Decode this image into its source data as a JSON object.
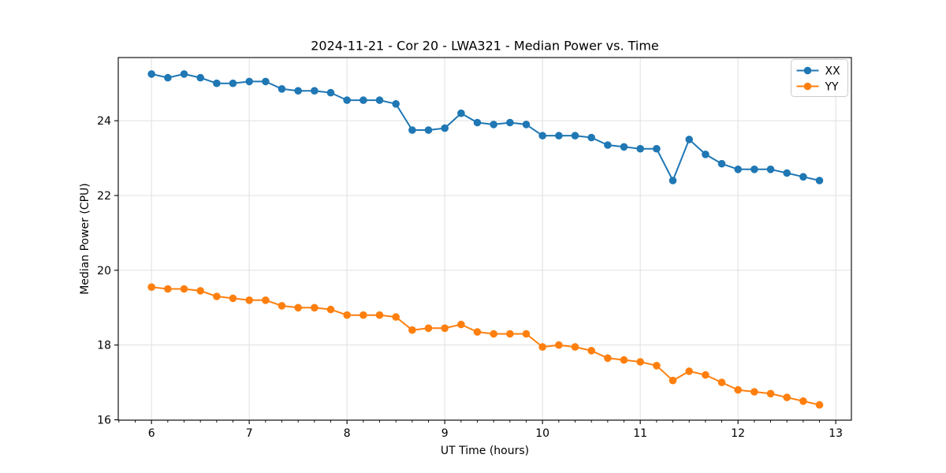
{
  "chart_data": {
    "type": "line",
    "title": "2024-11-21 - Cor 20 - LWA321 - Median Power vs. Time",
    "xlabel": "UT Time (hours)",
    "ylabel": "Median Power (CPU)",
    "xlim": [
      5.66,
      13.16
    ],
    "ylim": [
      15.99,
      25.69
    ],
    "xticks": [
      6,
      7,
      8,
      9,
      10,
      11,
      12,
      13
    ],
    "yticks": [
      16,
      18,
      20,
      22,
      24
    ],
    "x_minor_interval": 0.16667,
    "grid": true,
    "grid_color": "#e0e0e0",
    "spine_color": "#000000",
    "background_color": "#ffffff",
    "legend_position": "upper right",
    "x": [
      6.0,
      6.167,
      6.333,
      6.5,
      6.667,
      6.833,
      7.0,
      7.167,
      7.333,
      7.5,
      7.667,
      7.833,
      8.0,
      8.167,
      8.333,
      8.5,
      8.667,
      8.833,
      9.0,
      9.167,
      9.333,
      9.5,
      9.667,
      9.833,
      10.0,
      10.167,
      10.333,
      10.5,
      10.667,
      10.833,
      11.0,
      11.167,
      11.333,
      11.5,
      11.667,
      11.833,
      12.0,
      12.167,
      12.333,
      12.5,
      12.667,
      12.833
    ],
    "series": [
      {
        "name": "XX",
        "color": "#1f77b4",
        "values": [
          25.25,
          25.15,
          25.25,
          25.15,
          25.0,
          25.0,
          25.05,
          25.05,
          24.85,
          24.8,
          24.8,
          24.75,
          24.55,
          24.55,
          24.55,
          24.45,
          23.75,
          23.75,
          23.8,
          24.2,
          23.95,
          23.9,
          23.95,
          23.9,
          23.6,
          23.6,
          23.6,
          23.55,
          23.35,
          23.3,
          23.25,
          23.25,
          22.4,
          23.5,
          23.1,
          22.85,
          22.7,
          22.7,
          22.7,
          22.6,
          22.5,
          22.4
        ]
      },
      {
        "name": "YY",
        "color": "#ff7f0e",
        "values": [
          19.55,
          19.5,
          19.5,
          19.45,
          19.3,
          19.25,
          19.2,
          19.2,
          19.05,
          19.0,
          19.0,
          18.95,
          18.8,
          18.8,
          18.8,
          18.75,
          18.4,
          18.45,
          18.45,
          18.55,
          18.35,
          18.3,
          18.3,
          18.3,
          17.95,
          18.0,
          17.95,
          17.85,
          17.65,
          17.6,
          17.55,
          17.45,
          17.05,
          17.3,
          17.2,
          17.0,
          16.8,
          16.75,
          16.7,
          16.6,
          16.5,
          16.4
        ]
      }
    ]
  }
}
